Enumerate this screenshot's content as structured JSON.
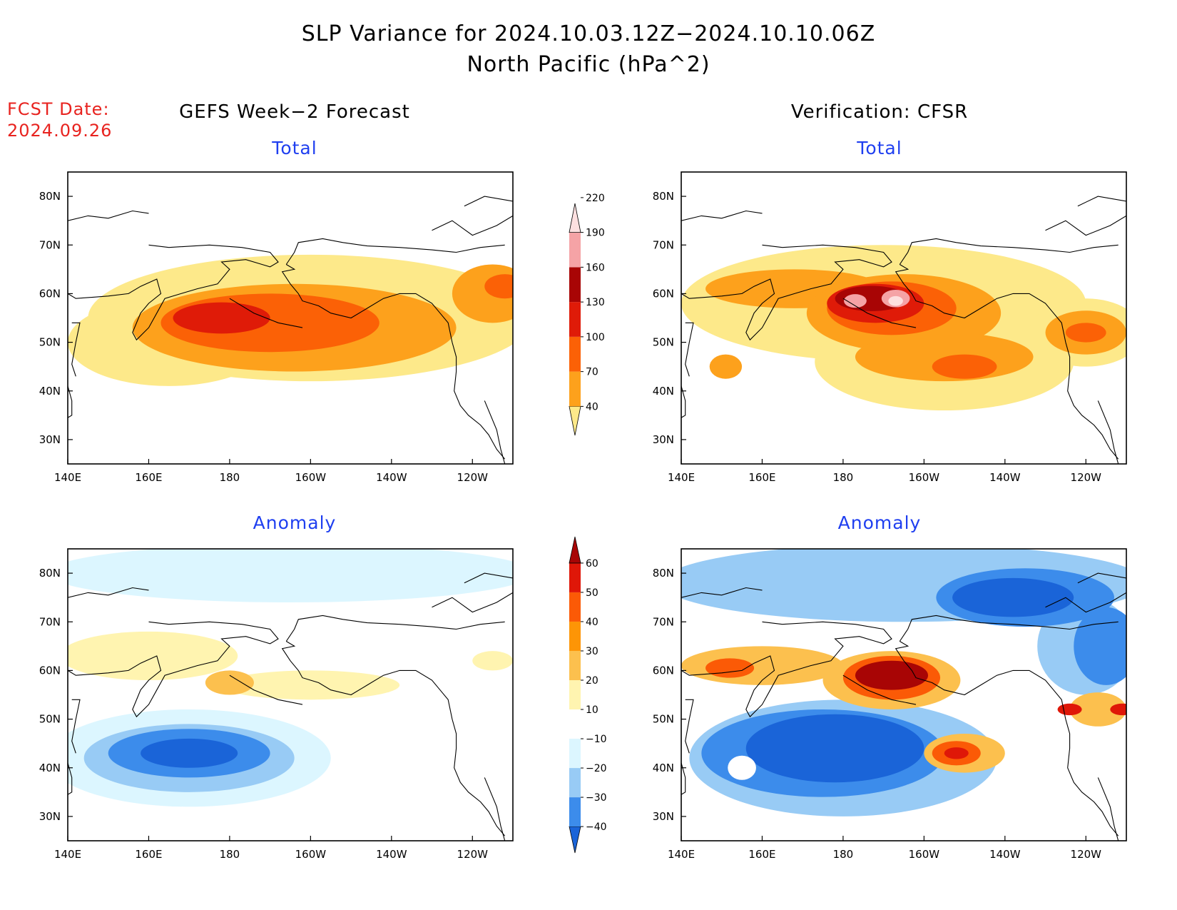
{
  "title_line1": "SLP Variance for 2024.10.03.12Z−2024.10.10.06Z",
  "title_line2": "North Pacific (hPa^2)",
  "fcst_label": "FCST Date:",
  "fcst_date": "2024.09.26",
  "left_column_title": "GEFS Week−2 Forecast",
  "right_column_title": "Verification: CFSR",
  "panels": {
    "top_left": "Total",
    "top_right": "Total",
    "bottom_left": "Anomaly",
    "bottom_right": "Anomaly"
  },
  "axes": {
    "lon_ticks": [
      "140E",
      "160E",
      "180",
      "160W",
      "140W",
      "120W"
    ],
    "lon_values": [
      140,
      160,
      180,
      200,
      220,
      240
    ],
    "lon_range": [
      140,
      250
    ],
    "lat_ticks": [
      "30N",
      "40N",
      "50N",
      "60N",
      "70N",
      "80N"
    ],
    "lat_values": [
      30,
      40,
      50,
      60,
      70,
      80
    ],
    "lat_range": [
      25,
      85
    ]
  },
  "total_colorbar": {
    "labels": [
      "40",
      "70",
      "100",
      "130",
      "160",
      "190",
      "220"
    ],
    "colors": [
      "#fde98a",
      "#fda11c",
      "#fb6106",
      "#df1b08",
      "#a80505",
      "#f5a3a6",
      "#fde0e0"
    ]
  },
  "anomaly_colorbar": {
    "labels": [
      "−40",
      "−30",
      "−20",
      "−10",
      "10",
      "20",
      "30",
      "40",
      "50",
      "60"
    ],
    "colors": [
      "#1a64d8",
      "#3c8ceb",
      "#98cbf5",
      "#dcf6ff",
      "#ffffff",
      "#fff4b0",
      "#fcc04e",
      "#fd9506",
      "#fb5a06",
      "#df1708",
      "#a80505"
    ]
  },
  "map_fields": {
    "top_left": [
      {
        "c": 0,
        "lon": 200,
        "lat": 55,
        "rx": 55,
        "ry": 13
      },
      {
        "c": 0,
        "lon": 165,
        "lat": 50,
        "rx": 25,
        "ry": 9
      },
      {
        "c": 1,
        "lon": 196,
        "lat": 53,
        "rx": 40,
        "ry": 9
      },
      {
        "c": 2,
        "lon": 190,
        "lat": 54,
        "rx": 27,
        "ry": 6
      },
      {
        "c": 3,
        "lon": 178,
        "lat": 55,
        "rx": 12,
        "ry": 3.2
      },
      {
        "c": 1,
        "lon": 245,
        "lat": 60,
        "rx": 10,
        "ry": 6
      },
      {
        "c": 2,
        "lon": 248,
        "lat": 61.5,
        "rx": 5,
        "ry": 2.5
      }
    ],
    "top_right": [
      {
        "c": 0,
        "lon": 190,
        "lat": 58,
        "rx": 50,
        "ry": 12
      },
      {
        "c": 0,
        "lon": 205,
        "lat": 46,
        "rx": 32,
        "ry": 10
      },
      {
        "c": 0,
        "lon": 240,
        "lat": 52,
        "rx": 14,
        "ry": 7
      },
      {
        "c": 1,
        "lon": 168,
        "lat": 61,
        "rx": 22,
        "ry": 4
      },
      {
        "c": 1,
        "lon": 195,
        "lat": 56,
        "rx": 24,
        "ry": 8
      },
      {
        "c": 1,
        "lon": 205,
        "lat": 47,
        "rx": 22,
        "ry": 5
      },
      {
        "c": 1,
        "lon": 240,
        "lat": 52,
        "rx": 10,
        "ry": 4.5
      },
      {
        "c": 1,
        "lon": 151,
        "lat": 45,
        "rx": 4,
        "ry": 2.5
      },
      {
        "c": 2,
        "lon": 192,
        "lat": 57,
        "rx": 16,
        "ry": 5.5
      },
      {
        "c": 2,
        "lon": 210,
        "lat": 45,
        "rx": 8,
        "ry": 2.5
      },
      {
        "c": 2,
        "lon": 240,
        "lat": 52,
        "rx": 5,
        "ry": 2
      },
      {
        "c": 3,
        "lon": 188,
        "lat": 58,
        "rx": 12,
        "ry": 4
      },
      {
        "c": 4,
        "lon": 187,
        "lat": 59,
        "rx": 9,
        "ry": 2.6
      },
      {
        "c": 5,
        "lon": 183,
        "lat": 58.5,
        "rx": 2.8,
        "ry": 1.4
      },
      {
        "c": 5,
        "lon": 193,
        "lat": 59,
        "rx": 3.5,
        "ry": 1.8
      },
      {
        "c": 6,
        "lon": 193,
        "lat": 58.5,
        "rx": 1.8,
        "ry": 1
      }
    ],
    "bottom_left": [
      {
        "c": 3,
        "lon": 195,
        "lat": 80,
        "rx": 60,
        "ry": 6
      },
      {
        "c": 3,
        "lon": 170,
        "lat": 42,
        "rx": 35,
        "ry": 10
      },
      {
        "c": 5,
        "lon": 160,
        "lat": 63,
        "rx": 22,
        "ry": 5
      },
      {
        "c": 5,
        "lon": 200,
        "lat": 57,
        "rx": 22,
        "ry": 3
      },
      {
        "c": 5,
        "lon": 245,
        "lat": 62,
        "rx": 5,
        "ry": 2
      },
      {
        "c": 6,
        "lon": 180,
        "lat": 57.5,
        "rx": 6,
        "ry": 2.5
      },
      {
        "c": 2,
        "lon": 170,
        "lat": 42,
        "rx": 26,
        "ry": 7
      },
      {
        "c": 1,
        "lon": 170,
        "lat": 43,
        "rx": 20,
        "ry": 5
      },
      {
        "c": 0,
        "lon": 170,
        "lat": 43,
        "rx": 12,
        "ry": 3
      }
    ],
    "bottom_right": [
      {
        "c": 2,
        "lon": 195,
        "lat": 78,
        "rx": 60,
        "ry": 8
      },
      {
        "c": 2,
        "lon": 180,
        "lat": 42,
        "rx": 38,
        "ry": 12
      },
      {
        "c": 2,
        "lon": 240,
        "lat": 65,
        "rx": 12,
        "ry": 10
      },
      {
        "c": 1,
        "lon": 225,
        "lat": 75,
        "rx": 22,
        "ry": 6
      },
      {
        "c": 1,
        "lon": 175,
        "lat": 43,
        "rx": 30,
        "ry": 9
      },
      {
        "c": 1,
        "lon": 245,
        "lat": 65,
        "rx": 8,
        "ry": 8
      },
      {
        "c": 0,
        "lon": 222,
        "lat": 75,
        "rx": 15,
        "ry": 4
      },
      {
        "c": 0,
        "lon": 178,
        "lat": 44,
        "rx": 22,
        "ry": 7
      },
      {
        "c": 4,
        "lon": 155,
        "lat": 40,
        "rx": 3.5,
        "ry": 2.5
      },
      {
        "c": 6,
        "lon": 160,
        "lat": 61,
        "rx": 20,
        "ry": 4
      },
      {
        "c": 6,
        "lon": 192,
        "lat": 58,
        "rx": 17,
        "ry": 6
      },
      {
        "c": 6,
        "lon": 210,
        "lat": 43,
        "rx": 10,
        "ry": 4
      },
      {
        "c": 6,
        "lon": 243,
        "lat": 52,
        "rx": 7,
        "ry": 3.5
      },
      {
        "c": 8,
        "lon": 192,
        "lat": 58.5,
        "rx": 12,
        "ry": 4.5
      },
      {
        "c": 8,
        "lon": 152,
        "lat": 60.5,
        "rx": 6,
        "ry": 2
      },
      {
        "c": 8,
        "lon": 208,
        "lat": 43,
        "rx": 6,
        "ry": 2.5
      },
      {
        "c": 10,
        "lon": 192,
        "lat": 59,
        "rx": 9,
        "ry": 3
      },
      {
        "c": 9,
        "lon": 208,
        "lat": 43,
        "rx": 3,
        "ry": 1.2
      },
      {
        "c": 9,
        "lon": 236,
        "lat": 52,
        "rx": 3,
        "ry": 1.2
      },
      {
        "c": 9,
        "lon": 249,
        "lat": 52,
        "rx": 3,
        "ry": 1.2
      }
    ]
  },
  "colors": {
    "title_text": "#000000",
    "fcst_text": "#e8231f",
    "panel_text": "#1f3ff0",
    "frame": "#000000",
    "coast": "#000000"
  }
}
